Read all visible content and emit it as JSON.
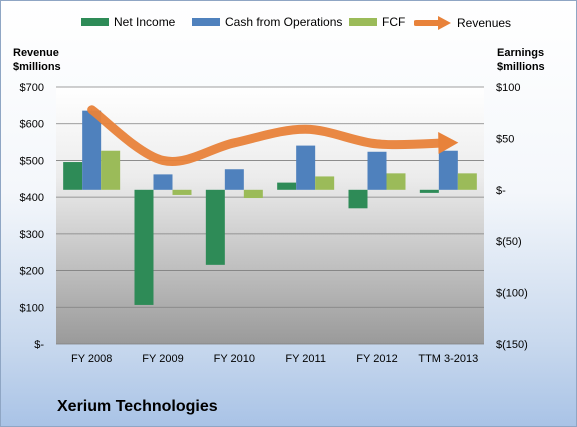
{
  "company": "Xerium Technologies",
  "left_axis_title": [
    "Revenue",
    "$millions"
  ],
  "right_axis_title": [
    "Earnings",
    "$millions"
  ],
  "colors": {
    "net_income": "#2e8b57",
    "cash_from_operations": "#4f81bd",
    "fcf": "#9bbb59",
    "revenues": "#e8823a"
  },
  "chart_data": {
    "type": "bar",
    "categories": [
      "FY 2008",
      "FY 2009",
      "FY 2010",
      "FY 2011",
      "FY 2012",
      "TTM 3-2013"
    ],
    "series": [
      {
        "name": "Net Income",
        "axis": "right",
        "values": [
          27,
          -112,
          -73,
          7,
          -18,
          -3
        ]
      },
      {
        "name": "Cash from Operations",
        "axis": "right",
        "values": [
          77,
          15,
          20,
          43,
          37,
          38
        ]
      },
      {
        "name": "FCF",
        "axis": "right",
        "values": [
          38,
          -5,
          -8,
          13,
          16,
          16
        ]
      },
      {
        "name": "Revenues",
        "axis": "left",
        "type": "line",
        "values": [
          638,
          500,
          548,
          585,
          545,
          548
        ]
      }
    ],
    "left_axis": {
      "min": 0,
      "max": 700,
      "ticks": [
        "$-",
        "$100",
        "$200",
        "$300",
        "$400",
        "$500",
        "$600",
        "$700"
      ]
    },
    "right_axis": {
      "min": -150,
      "max": 100,
      "ticks": [
        "$(150)",
        "$(100)",
        "$(50)",
        "$-",
        "$50",
        "$100"
      ]
    },
    "legend_position": "top"
  }
}
